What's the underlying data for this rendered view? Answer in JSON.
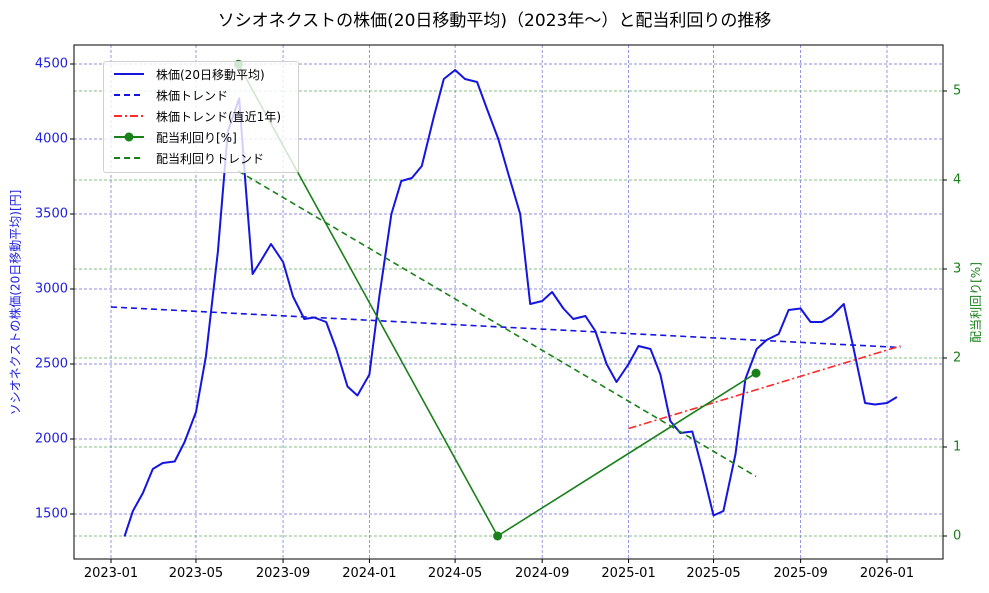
{
  "title": "ソシオネクストの株価(20日移動平均)（2023年～）と配当利回りの推移",
  "axes": {
    "left_label": "ソシオネクストの株価(20日移動平均)[円]",
    "right_label": "配当利回り[%]",
    "left_ticks": [
      "1500",
      "2000",
      "2500",
      "3000",
      "3500",
      "4000",
      "4500"
    ],
    "right_ticks": [
      "0",
      "1",
      "2",
      "3",
      "4",
      "5"
    ],
    "x_ticks": [
      "2023-01",
      "2023-05",
      "2023-09",
      "2024-01",
      "2024-05",
      "2024-09",
      "2025-01",
      "2025-05",
      "2025-09",
      "2026-01"
    ]
  },
  "legend": [
    {
      "label": "株価(20日移動平均)",
      "style": "solid",
      "color": "#1515e0"
    },
    {
      "label": "株価トレンド",
      "style": "dashed",
      "color": "#1515e0"
    },
    {
      "label": "株価トレンド(直近1年)",
      "style": "dashdot",
      "color": "#ff2a2a"
    },
    {
      "label": "配当利回り[%]",
      "style": "solid-marker",
      "color": "#1a801a"
    },
    {
      "label": "配当利回りトレンド",
      "style": "dashed",
      "color": "#1a801a"
    }
  ],
  "colors": {
    "price": "#1515e0",
    "price_trend": "#1515e0",
    "price_trend_recent": "#ff2a2a",
    "yield": "#1a801a",
    "yield_trend": "#1a801a",
    "grid_left": "#6b6bdc",
    "grid_right": "#5fae5f"
  },
  "chart_data": {
    "type": "line",
    "title": "ソシオネクストの株価(20日移動平均)（2023年～）と配当利回りの推移",
    "xlabel": "",
    "ylabel": "ソシオネクストの株価(20日移動平均)[円]",
    "y2label": "配当利回り[%]",
    "ylim": [
      1220,
      4630
    ],
    "y2lim": [
      -0.05,
      5.5
    ],
    "xlim": [
      "2022-11-20",
      "2026-03-10"
    ],
    "grid": true,
    "legend_position": "upper left",
    "series": [
      {
        "name": "株価(20日移動平均)",
        "axis": "left",
        "x": [
          "2023-01-20",
          "2023-02-01",
          "2023-02-15",
          "2023-03-01",
          "2023-03-15",
          "2023-04-01",
          "2023-04-15",
          "2023-05-01",
          "2023-05-15",
          "2023-06-01",
          "2023-06-15",
          "2023-07-01",
          "2023-07-10",
          "2023-07-20",
          "2023-08-01",
          "2023-08-15",
          "2023-09-01",
          "2023-09-15",
          "2023-10-01",
          "2023-10-15",
          "2023-11-01",
          "2023-11-15",
          "2023-12-01",
          "2023-12-15",
          "2024-01-01",
          "2024-01-15",
          "2024-02-01",
          "2024-02-15",
          "2024-03-01",
          "2024-03-15",
          "2024-04-01",
          "2024-04-15",
          "2024-05-01",
          "2024-05-15",
          "2024-06-01",
          "2024-06-15",
          "2024-07-01",
          "2024-07-15",
          "2024-08-01",
          "2024-08-15",
          "2024-09-01",
          "2024-09-15",
          "2024-10-01",
          "2024-10-15",
          "2024-11-01",
          "2024-11-15",
          "2024-12-01",
          "2024-12-15",
          "2025-01-01",
          "2025-01-15",
          "2025-02-01",
          "2025-02-15",
          "2025-03-01",
          "2025-03-15",
          "2025-04-01",
          "2025-04-15",
          "2025-05-01",
          "2025-05-15",
          "2025-06-01",
          "2025-06-15",
          "2025-07-01",
          "2025-07-15",
          "2025-08-01",
          "2025-08-15",
          "2025-09-01",
          "2025-09-15",
          "2025-10-01",
          "2025-10-15",
          "2025-11-01",
          "2025-11-15",
          "2025-12-01",
          "2025-12-15",
          "2026-01-01",
          "2026-01-15"
        ],
        "values": [
          1350,
          1520,
          1640,
          1800,
          1840,
          1850,
          1980,
          2180,
          2550,
          3250,
          4050,
          4270,
          3700,
          3100,
          3190,
          3300,
          3180,
          2950,
          2800,
          2810,
          2780,
          2600,
          2350,
          2290,
          2430,
          2950,
          3500,
          3720,
          3740,
          3820,
          4150,
          4400,
          4460,
          4400,
          4380,
          4200,
          4000,
          3770,
          3500,
          2900,
          2920,
          2980,
          2870,
          2800,
          2820,
          2720,
          2500,
          2380,
          2500,
          2620,
          2600,
          2430,
          2120,
          2040,
          2050,
          1800,
          1490,
          1520,
          1900,
          2400,
          2600,
          2660,
          2700,
          2860,
          2870,
          2780,
          2780,
          2820,
          2900,
          2600,
          2240,
          2230,
          2240,
          2280
        ]
      },
      {
        "name": "株価トレンド",
        "axis": "left",
        "style": "dashed",
        "x": [
          "2023-01-01",
          "2026-01-20"
        ],
        "values": [
          2880,
          2610
        ]
      },
      {
        "name": "株価トレンド(直近1年)",
        "axis": "left",
        "style": "dashdot",
        "x": [
          "2025-01-01",
          "2026-01-20"
        ],
        "values": [
          2070,
          2620
        ]
      },
      {
        "name": "配当利回り[%]",
        "axis": "right",
        "style": "solid-marker",
        "x": [
          "2023-06-30",
          "2024-06-30",
          "2025-06-30"
        ],
        "values": [
          5.3,
          0.0,
          1.83
        ]
      },
      {
        "name": "配当利回りトレンド",
        "axis": "right",
        "style": "dashed",
        "x": [
          "2023-06-30",
          "2025-06-30"
        ],
        "values": [
          4.1,
          0.67
        ]
      }
    ]
  }
}
